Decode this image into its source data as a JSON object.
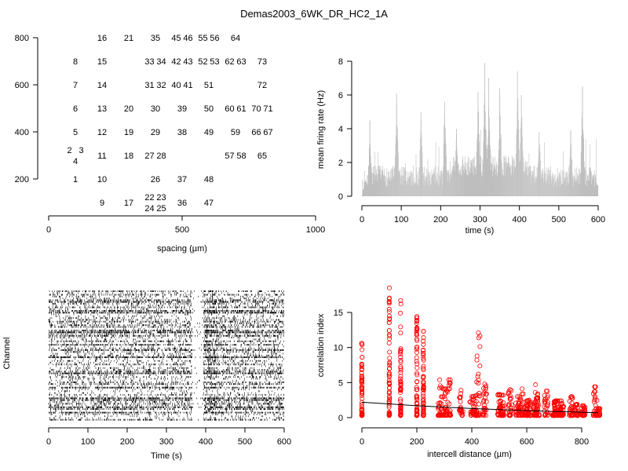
{
  "title": "Demas2003_6WK_DR_HC2_1A",
  "chart_data": [
    {
      "type": "scatter",
      "name": "electrode-layout",
      "xlabel": "spacing (µm)",
      "ylabel": "",
      "xlim": [
        0,
        1000
      ],
      "ylim": [
        100,
        800
      ],
      "xticks": [
        "0",
        "500",
        "1000"
      ],
      "yticks": [
        "200",
        "400",
        "600",
        "800"
      ],
      "labels": [
        {
          "t": "16",
          "x": 200,
          "y": 800
        },
        {
          "t": "21",
          "x": 300,
          "y": 800
        },
        {
          "t": "35",
          "x": 400,
          "y": 800
        },
        {
          "t": "45",
          "x": 500,
          "y": 800
        },
        {
          "t": "46",
          "x": 500,
          "y": 800
        },
        {
          "t": "55",
          "x": 600,
          "y": 800
        },
        {
          "t": "56",
          "x": 600,
          "y": 800
        },
        {
          "t": "64",
          "x": 700,
          "y": 800
        },
        {
          "t": "8",
          "x": 100,
          "y": 700
        },
        {
          "t": "15",
          "x": 200,
          "y": 700
        },
        {
          "t": "33",
          "x": 400,
          "y": 700
        },
        {
          "t": "34",
          "x": 400,
          "y": 700
        },
        {
          "t": "42",
          "x": 500,
          "y": 700
        },
        {
          "t": "43",
          "x": 500,
          "y": 700
        },
        {
          "t": "52",
          "x": 600,
          "y": 700
        },
        {
          "t": "53",
          "x": 600,
          "y": 700
        },
        {
          "t": "62",
          "x": 700,
          "y": 700
        },
        {
          "t": "63",
          "x": 700,
          "y": 700
        },
        {
          "t": "73",
          "x": 800,
          "y": 700
        },
        {
          "t": "7",
          "x": 100,
          "y": 600
        },
        {
          "t": "14",
          "x": 200,
          "y": 600
        },
        {
          "t": "31",
          "x": 400,
          "y": 600
        },
        {
          "t": "32",
          "x": 400,
          "y": 600
        },
        {
          "t": "40",
          "x": 500,
          "y": 600
        },
        {
          "t": "41",
          "x": 500,
          "y": 600
        },
        {
          "t": "51",
          "x": 600,
          "y": 600
        },
        {
          "t": "72",
          "x": 800,
          "y": 600
        },
        {
          "t": "6",
          "x": 100,
          "y": 500
        },
        {
          "t": "13",
          "x": 200,
          "y": 500
        },
        {
          "t": "20",
          "x": 300,
          "y": 500
        },
        {
          "t": "30",
          "x": 400,
          "y": 500
        },
        {
          "t": "39",
          "x": 500,
          "y": 500
        },
        {
          "t": "50",
          "x": 600,
          "y": 500
        },
        {
          "t": "60",
          "x": 700,
          "y": 500
        },
        {
          "t": "61",
          "x": 700,
          "y": 500
        },
        {
          "t": "70",
          "x": 800,
          "y": 500
        },
        {
          "t": "71",
          "x": 800,
          "y": 500
        },
        {
          "t": "5",
          "x": 100,
          "y": 400
        },
        {
          "t": "12",
          "x": 200,
          "y": 400
        },
        {
          "t": "19",
          "x": 300,
          "y": 400
        },
        {
          "t": "29",
          "x": 400,
          "y": 400
        },
        {
          "t": "38",
          "x": 500,
          "y": 400
        },
        {
          "t": "49",
          "x": 600,
          "y": 400
        },
        {
          "t": "59",
          "x": 700,
          "y": 400
        },
        {
          "t": "66",
          "x": 800,
          "y": 400
        },
        {
          "t": "67",
          "x": 800,
          "y": 400
        },
        {
          "t": "2",
          "x": 100,
          "y": 300
        },
        {
          "t": "3",
          "x": 100,
          "y": 300
        },
        {
          "t": "4",
          "x": 100,
          "y": 300
        },
        {
          "t": "11",
          "x": 200,
          "y": 300
        },
        {
          "t": "18",
          "x": 300,
          "y": 300
        },
        {
          "t": "27",
          "x": 400,
          "y": 300
        },
        {
          "t": "28",
          "x": 400,
          "y": 300
        },
        {
          "t": "57",
          "x": 700,
          "y": 300
        },
        {
          "t": "58",
          "x": 700,
          "y": 300
        },
        {
          "t": "65",
          "x": 800,
          "y": 300
        },
        {
          "t": "1",
          "x": 100,
          "y": 200
        },
        {
          "t": "10",
          "x": 200,
          "y": 200
        },
        {
          "t": "26",
          "x": 400,
          "y": 200
        },
        {
          "t": "37",
          "x": 500,
          "y": 200
        },
        {
          "t": "48",
          "x": 600,
          "y": 200
        },
        {
          "t": "9",
          "x": 200,
          "y": 100
        },
        {
          "t": "17",
          "x": 300,
          "y": 100
        },
        {
          "t": "22",
          "x": 400,
          "y": 100
        },
        {
          "t": "23",
          "x": 400,
          "y": 100
        },
        {
          "t": "24",
          "x": 400,
          "y": 100
        },
        {
          "t": "25",
          "x": 400,
          "y": 100
        },
        {
          "t": "36",
          "x": 500,
          "y": 100
        },
        {
          "t": "47",
          "x": 600,
          "y": 100
        }
      ]
    },
    {
      "type": "bar",
      "name": "mean-firing-rate",
      "xlabel": "time (s)",
      "ylabel": "mean firing rate (Hz)",
      "xlim": [
        0,
        600
      ],
      "ylim": [
        0,
        8
      ],
      "xticks": [
        "0",
        "100",
        "200",
        "300",
        "400",
        "500",
        "600"
      ],
      "yticks": [
        "0",
        "2",
        "4",
        "6",
        "8"
      ],
      "bar_color": "#bebebe",
      "baseline_hz": 1.4,
      "peaks": [
        {
          "t": 20,
          "v": 4.5
        },
        {
          "t": 88,
          "v": 6.1
        },
        {
          "t": 150,
          "v": 5.0
        },
        {
          "t": 210,
          "v": 5.6
        },
        {
          "t": 240,
          "v": 4.0
        },
        {
          "t": 295,
          "v": 6.2
        },
        {
          "t": 312,
          "v": 7.9
        },
        {
          "t": 322,
          "v": 7.0
        },
        {
          "t": 350,
          "v": 6.4
        },
        {
          "t": 395,
          "v": 7.4
        },
        {
          "t": 405,
          "v": 6.0
        },
        {
          "t": 450,
          "v": 3.8
        },
        {
          "t": 530,
          "v": 3.9
        },
        {
          "t": 560,
          "v": 6.5
        }
      ]
    },
    {
      "type": "raster",
      "name": "spike-raster",
      "xlabel": "Time (s)",
      "ylabel": "Channel",
      "xlim": [
        0,
        600
      ],
      "xticks": [
        "0",
        "100",
        "200",
        "300",
        "400",
        "500",
        "600"
      ],
      "n_channels": 73,
      "quiet_period_s": [
        365,
        395
      ]
    },
    {
      "type": "scatter",
      "name": "correlation-vs-distance",
      "xlabel": "intercell distance (µm)",
      "ylabel": "correlation index",
      "xlim": [
        0,
        860
      ],
      "ylim": [
        0,
        18.5
      ],
      "xticks": [
        "0",
        "200",
        "400",
        "600",
        "800"
      ],
      "yticks": [
        "0",
        "5",
        "10",
        "15"
      ],
      "point_color": "#ff0000",
      "fit_line": [
        [
          0,
          2.2
        ],
        [
          200,
          1.7
        ],
        [
          400,
          1.3
        ],
        [
          600,
          1.0
        ],
        [
          860,
          0.7
        ]
      ],
      "distances": [
        0,
        100,
        141,
        200,
        224,
        283,
        300,
        316,
        361,
        400,
        412,
        424,
        447,
        500,
        510,
        539,
        566,
        583,
        600,
        608,
        632,
        640,
        671,
        700,
        707,
        721,
        728,
        762,
        781,
        806,
        849,
        860
      ],
      "max_values": [
        10.6,
        18.5,
        16.7,
        14.4,
        12.3,
        5.4,
        4.1,
        5.4,
        3.9,
        3.0,
        3.1,
        12.1,
        4.8,
        3.3,
        3.2,
        4.0,
        3.0,
        4.1,
        2.4,
        2.5,
        4.7,
        3.4,
        3.8,
        2.3,
        2.4,
        2.4,
        2.0,
        3.0,
        1.9,
        1.7,
        4.4,
        1.3
      ]
    }
  ]
}
